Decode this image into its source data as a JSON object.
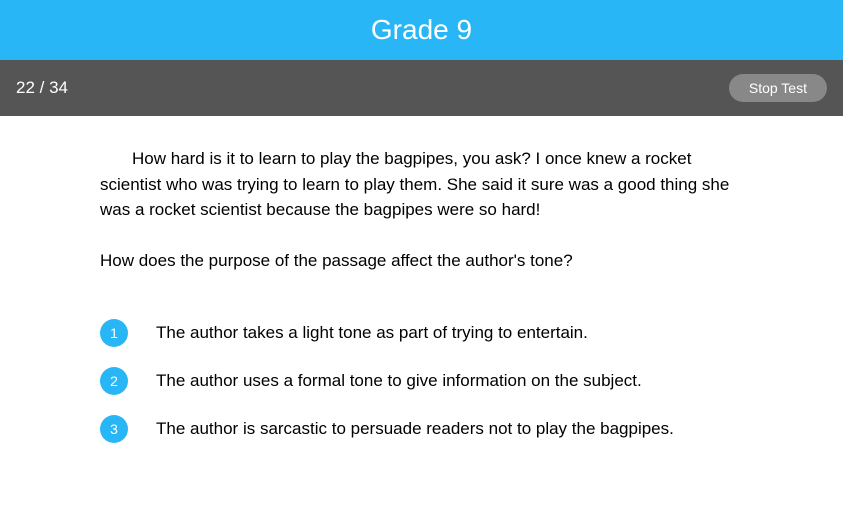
{
  "header": {
    "title": "Grade 9"
  },
  "toolbar": {
    "progress_current": 22,
    "progress_total": 34,
    "progress_separator": " / ",
    "stop_label": "Stop Test"
  },
  "content": {
    "passage": "How hard is it to learn to play the bagpipes, you ask? I once knew a rocket scientist who was trying to learn to play them. She said it sure was a good thing she was a rocket scientist because the bagpipes were so hard!",
    "question": "How does the purpose of the passage affect the author's tone?",
    "options": [
      {
        "num": "1",
        "text": "The author takes a light tone as part of trying to entertain."
      },
      {
        "num": "2",
        "text": "The author uses a formal tone to give information on the subject."
      },
      {
        "num": "3",
        "text": "The author is sarcastic to persuade readers not to play the bagpipes."
      }
    ]
  },
  "colors": {
    "primary": "#29b6f6",
    "toolbar_bg": "#555555",
    "button_bg": "#888888",
    "text": "#000000",
    "white": "#ffffff"
  }
}
